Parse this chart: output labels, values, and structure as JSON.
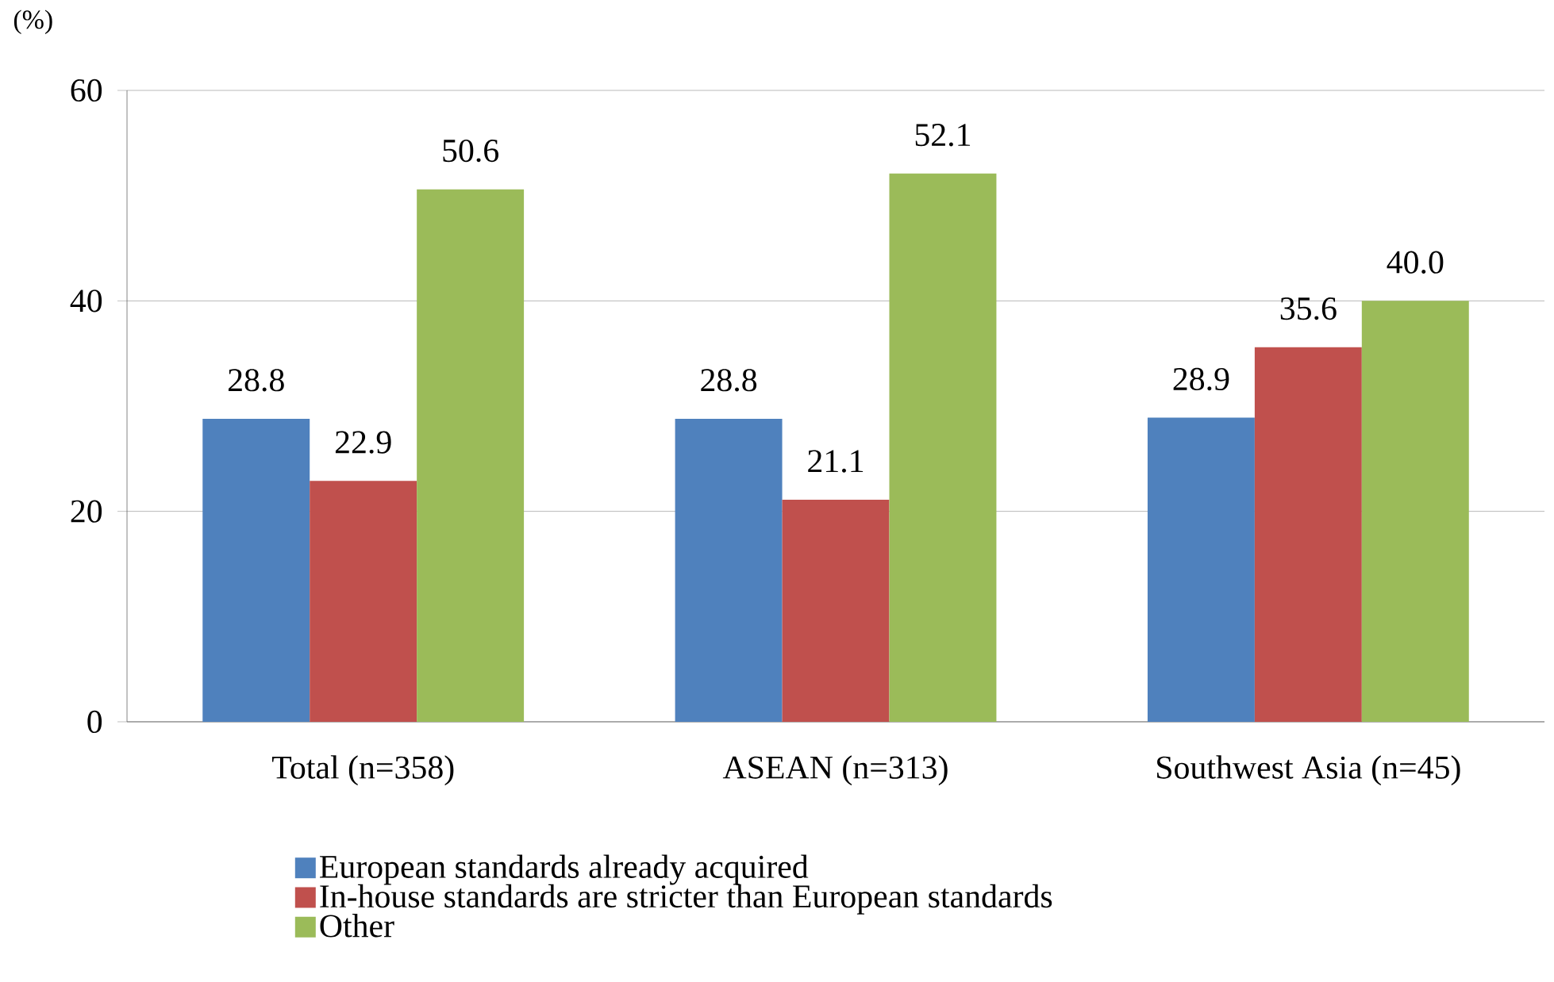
{
  "chart_data": {
    "type": "bar",
    "ylabel": "(%)",
    "categories": [
      "Total (n=358)",
      "ASEAN  (n=313)",
      "Southwest Asia (n=45)"
    ],
    "series": [
      {
        "name": "European standards already acquired",
        "color": "#4f81bd",
        "values": [
          28.8,
          28.8,
          28.9
        ],
        "value_labels": [
          "28.8",
          "28.8",
          "28.9"
        ]
      },
      {
        "name": "In-house standards are stricter than European standards",
        "color": "#c0504d",
        "values": [
          22.9,
          21.1,
          35.6
        ],
        "value_labels": [
          "22.9",
          "21.1",
          "35.6"
        ]
      },
      {
        "name": "Other",
        "color": "#9bbb59",
        "values": [
          50.6,
          52.1,
          40.0
        ],
        "value_labels": [
          "50.6",
          "52.1",
          "40.0"
        ]
      }
    ],
    "ylim": [
      0,
      60
    ],
    "yticks": [
      0,
      20,
      40,
      60
    ],
    "grid": "y",
    "legend": "bottom"
  }
}
